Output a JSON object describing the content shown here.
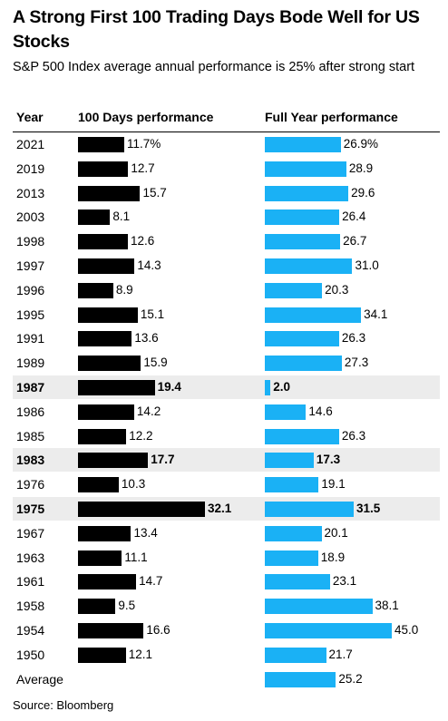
{
  "header": {
    "title": "A Strong First 100 Trading Days Bode Well for US Stocks",
    "subtitle": "S&P 500 Index average annual performance is 25% after strong start"
  },
  "columns": {
    "year": "Year",
    "first100": "100 Days performance",
    "fullyear": "Full Year performance"
  },
  "footer": {
    "source": "Source: Bloomberg"
  },
  "colors": {
    "first100": "#000000",
    "fullyear": "#1ab1f5",
    "highlight": "#ececec"
  },
  "chart_data": {
    "type": "bar",
    "title": "A Strong First 100 Trading Days Bode Well for US Stocks",
    "subtitle": "S&P 500 Index average annual performance is 25% after strong start",
    "categories": [
      "2021",
      "2019",
      "2013",
      "2003",
      "1998",
      "1997",
      "1996",
      "1995",
      "1991",
      "1989",
      "1987",
      "1986",
      "1985",
      "1983",
      "1976",
      "1975",
      "1967",
      "1963",
      "1961",
      "1958",
      "1954",
      "1950"
    ],
    "series": [
      {
        "name": "100 Days performance",
        "values": [
          11.7,
          12.7,
          15.7,
          8.1,
          12.6,
          14.3,
          8.9,
          15.1,
          13.6,
          15.9,
          19.4,
          14.2,
          12.2,
          17.7,
          10.3,
          32.1,
          13.4,
          11.1,
          14.7,
          9.5,
          16.6,
          12.1
        ]
      },
      {
        "name": "Full Year performance",
        "values": [
          26.9,
          28.9,
          29.6,
          26.4,
          26.7,
          31.0,
          20.3,
          34.1,
          26.3,
          27.3,
          2.0,
          14.6,
          26.3,
          17.3,
          19.1,
          31.5,
          20.1,
          18.9,
          23.1,
          38.1,
          45.0,
          21.7
        ]
      }
    ],
    "value_labels": {
      "first100": [
        "11.7%",
        "12.7",
        "15.7",
        "8.1",
        "12.6",
        "14.3",
        "8.9",
        "15.1",
        "13.6",
        "15.9",
        "19.4",
        "14.2",
        "12.2",
        "17.7",
        "10.3",
        "32.1",
        "13.4",
        "11.1",
        "14.7",
        "9.5",
        "16.6",
        "12.1"
      ],
      "fullyear": [
        "26.9%",
        "28.9",
        "29.6",
        "26.4",
        "26.7",
        "31.0",
        "20.3",
        "34.1",
        "26.3",
        "27.3",
        "2.0",
        "14.6",
        "26.3",
        "17.3",
        "19.1",
        "31.5",
        "20.1",
        "18.9",
        "23.1",
        "38.1",
        "45.0",
        "21.7"
      ]
    },
    "highlighted": [
      "1987",
      "1983",
      "1975"
    ],
    "average": {
      "label": "Average",
      "fullyear": 25.2,
      "fullyear_label": "25.2"
    },
    "grid": false,
    "legend": "none"
  }
}
